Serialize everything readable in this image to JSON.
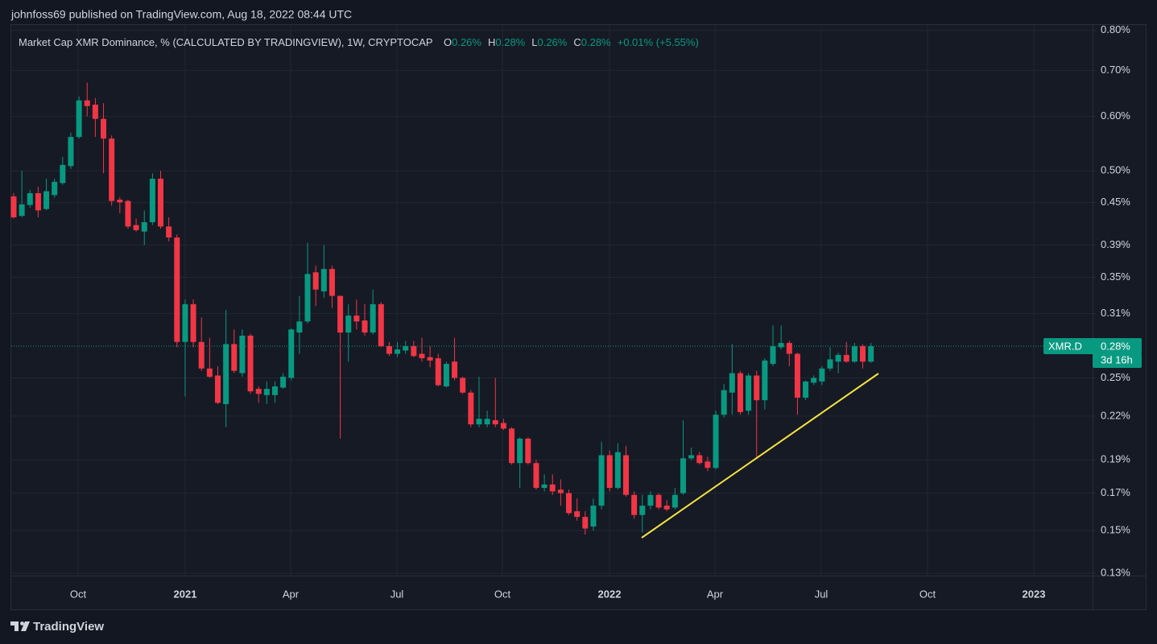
{
  "header": {
    "published": "johnfoss69 published on TradingView.com, Aug 18, 2022 08:44 UTC"
  },
  "footer": {
    "brand": "TradingView"
  },
  "chart_data": {
    "type": "candlestick",
    "title": "Market Cap XMR Dominance, % (CALCULATED BY TRADINGVIEW), 1W, CRYPTOCAP",
    "legend": [
      {
        "label": "O",
        "value": "0.26%"
      },
      {
        "label": "H",
        "value": "0.28%"
      },
      {
        "label": "L",
        "value": "0.26%"
      },
      {
        "label": "C",
        "value": "0.28%"
      }
    ],
    "change": "+0.01% (+5.55%)",
    "price_label": {
      "symbol": "XMR.D",
      "price": "0.28%",
      "countdown": "3d 16h"
    },
    "up_color": "#089981",
    "down_color": "#f23645",
    "log_scale": true,
    "grid": true,
    "ylim": [
      0.129,
      0.817
    ],
    "yticks": [
      {
        "value": 0.8,
        "label": "0.80%"
      },
      {
        "value": 0.7,
        "label": "0.70%"
      },
      {
        "value": 0.6,
        "label": "0.60%"
      },
      {
        "value": 0.5,
        "label": "0.50%"
      },
      {
        "value": 0.45,
        "label": "0.45%"
      },
      {
        "value": 0.39,
        "label": "0.39%"
      },
      {
        "value": 0.35,
        "label": "0.35%"
      },
      {
        "value": 0.31,
        "label": "0.31%"
      },
      {
        "value": 0.25,
        "label": "0.25%"
      },
      {
        "value": 0.22,
        "label": "0.22%"
      },
      {
        "value": 0.19,
        "label": "0.19%"
      },
      {
        "value": 0.17,
        "label": "0.17%"
      },
      {
        "value": 0.15,
        "label": "0.15%"
      },
      {
        "value": 0.13,
        "label": "0.13%"
      }
    ],
    "xticks": [
      "Oct",
      "2021",
      "Apr",
      "Jul",
      "Oct",
      "2022",
      "Apr",
      "Jul",
      "Oct",
      "2023"
    ],
    "open": [
      0.459,
      0.43,
      0.446,
      0.464,
      0.44,
      0.461,
      0.48,
      0.508,
      0.56,
      0.633,
      0.624,
      0.595,
      0.557,
      0.454,
      0.452,
      0.417,
      0.408,
      0.421,
      0.487,
      0.415,
      0.4,
      0.282,
      0.32,
      0.282,
      0.258,
      0.252,
      0.229,
      0.28,
      0.254,
      0.288,
      0.241,
      0.236,
      0.236,
      0.242,
      0.25,
      0.291,
      0.302,
      0.356,
      0.334,
      0.36,
      0.329,
      0.291,
      0.308,
      0.303,
      0.291,
      0.32,
      0.278,
      0.271,
      0.274,
      0.278,
      0.271,
      0.268,
      0.267,
      0.243,
      0.264,
      0.25,
      0.238,
      0.214,
      0.214,
      0.217,
      0.215,
      0.211,
      0.188,
      0.204,
      0.188,
      0.173,
      0.175,
      0.172,
      0.17,
      0.16,
      0.157,
      0.152,
      0.163,
      0.193,
      0.173,
      0.193,
      0.169,
      0.158,
      0.163,
      0.169,
      0.163,
      0.162,
      0.17,
      0.191,
      0.193,
      0.189,
      0.185,
      0.221,
      0.238,
      0.254,
      0.224,
      0.252,
      0.232,
      0.262,
      0.277,
      0.281,
      0.271,
      0.234,
      0.246,
      0.247,
      0.258,
      0.264,
      0.27,
      0.264,
      0.278,
      0.264
    ],
    "high": [
      0.464,
      0.5,
      0.469,
      0.474,
      0.487,
      0.487,
      0.524,
      0.568,
      0.641,
      0.672,
      0.638,
      0.627,
      0.563,
      0.458,
      0.454,
      0.426,
      0.438,
      0.496,
      0.5,
      0.428,
      0.404,
      0.325,
      0.325,
      0.306,
      0.286,
      0.26,
      0.314,
      0.294,
      0.294,
      0.29,
      0.243,
      0.247,
      0.247,
      0.254,
      0.295,
      0.329,
      0.393,
      0.364,
      0.39,
      0.364,
      0.329,
      0.32,
      0.325,
      0.32,
      0.336,
      0.322,
      0.282,
      0.282,
      0.283,
      0.283,
      0.286,
      0.278,
      0.271,
      0.264,
      0.286,
      0.251,
      0.24,
      0.251,
      0.224,
      0.25,
      0.218,
      0.212,
      0.205,
      0.205,
      0.19,
      0.181,
      0.181,
      0.178,
      0.172,
      0.167,
      0.16,
      0.167,
      0.202,
      0.196,
      0.201,
      0.199,
      0.171,
      0.169,
      0.171,
      0.17,
      0.166,
      0.173,
      0.217,
      0.198,
      0.195,
      0.192,
      0.224,
      0.245,
      0.28,
      0.256,
      0.254,
      0.256,
      0.267,
      0.298,
      0.298,
      0.283,
      0.272,
      0.248,
      0.252,
      0.26,
      0.277,
      0.272,
      0.282,
      0.281,
      0.28,
      0.281
    ],
    "low": [
      0.426,
      0.428,
      0.442,
      0.428,
      0.438,
      0.457,
      0.477,
      0.503,
      0.557,
      0.6,
      0.56,
      0.496,
      0.445,
      0.434,
      0.412,
      0.408,
      0.39,
      0.417,
      0.412,
      0.395,
      0.277,
      0.235,
      0.277,
      0.256,
      0.25,
      0.229,
      0.212,
      0.254,
      0.251,
      0.237,
      0.23,
      0.229,
      0.23,
      0.241,
      0.248,
      0.271,
      0.3,
      0.318,
      0.327,
      0.316,
      0.204,
      0.264,
      0.294,
      0.288,
      0.289,
      0.277,
      0.269,
      0.268,
      0.271,
      0.268,
      0.264,
      0.259,
      0.243,
      0.242,
      0.248,
      0.237,
      0.212,
      0.212,
      0.212,
      0.212,
      0.21,
      0.187,
      0.173,
      0.187,
      0.172,
      0.171,
      0.169,
      0.163,
      0.158,
      0.155,
      0.148,
      0.15,
      0.161,
      0.171,
      0.172,
      0.168,
      0.156,
      0.149,
      0.161,
      0.161,
      0.16,
      0.161,
      0.169,
      0.19,
      0.187,
      0.183,
      0.184,
      0.219,
      0.221,
      0.221,
      0.221,
      0.191,
      0.225,
      0.26,
      0.275,
      0.26,
      0.221,
      0.232,
      0.244,
      0.244,
      0.256,
      0.254,
      0.263,
      0.263,
      0.258,
      0.263
    ],
    "close": [
      0.428,
      0.447,
      0.464,
      0.438,
      0.467,
      0.482,
      0.51,
      0.56,
      0.633,
      0.621,
      0.595,
      0.557,
      0.452,
      0.45,
      0.415,
      0.41,
      0.421,
      0.487,
      0.415,
      0.4,
      0.282,
      0.32,
      0.282,
      0.258,
      0.251,
      0.23,
      0.28,
      0.256,
      0.288,
      0.239,
      0.237,
      0.241,
      0.243,
      0.251,
      0.294,
      0.302,
      0.354,
      0.336,
      0.36,
      0.329,
      0.291,
      0.308,
      0.302,
      0.291,
      0.32,
      0.278,
      0.271,
      0.275,
      0.278,
      0.269,
      0.267,
      0.265,
      0.244,
      0.262,
      0.25,
      0.238,
      0.214,
      0.218,
      0.218,
      0.214,
      0.211,
      0.188,
      0.204,
      0.188,
      0.173,
      0.175,
      0.171,
      0.17,
      0.159,
      0.157,
      0.151,
      0.163,
      0.193,
      0.173,
      0.195,
      0.169,
      0.158,
      0.163,
      0.169,
      0.162,
      0.161,
      0.169,
      0.191,
      0.193,
      0.188,
      0.185,
      0.221,
      0.24,
      0.254,
      0.223,
      0.252,
      0.232,
      0.265,
      0.278,
      0.281,
      0.271,
      0.234,
      0.247,
      0.25,
      0.258,
      0.266,
      0.27,
      0.264,
      0.278,
      0.264,
      0.278
    ]
  }
}
